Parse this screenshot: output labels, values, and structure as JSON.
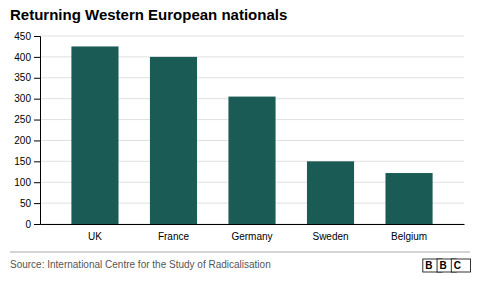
{
  "chart_data": {
    "type": "bar",
    "title": "Returning Western European nationals",
    "categories": [
      "UK",
      "France",
      "Germany",
      "Sweden",
      "Belgium"
    ],
    "values": [
      425,
      400,
      305,
      150,
      122
    ],
    "color": "#1a5c55",
    "ylim": [
      0,
      450
    ],
    "yticks": [
      0,
      50,
      100,
      150,
      200,
      250,
      300,
      350,
      400,
      450
    ],
    "grid": true,
    "annotations": [
      "Source: International Centre for the Study of Radicalisation",
      "BBC"
    ]
  }
}
